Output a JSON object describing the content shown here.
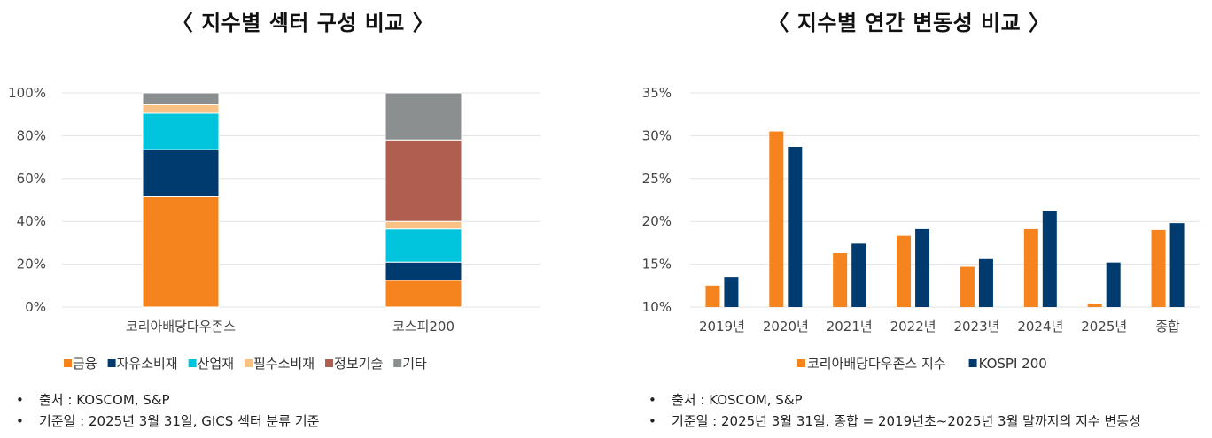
{
  "chart_data": [
    {
      "type": "bar",
      "stacked": true,
      "title": "〈 지수별 섹터 구성 비교 〉",
      "categories": [
        "코리아배당다우존스",
        "코스피200"
      ],
      "yticks": [
        "0%",
        "20%",
        "40%",
        "60%",
        "80%",
        "100%"
      ],
      "ylim": [
        0,
        100
      ],
      "legend_position": "bottom",
      "series": [
        {
          "name": "금융",
          "color": "#F5841F",
          "values": [
            51.5,
            12.5
          ]
        },
        {
          "name": "자유소비재",
          "color": "#003B6F",
          "values": [
            22.0,
            8.5
          ]
        },
        {
          "name": "산업재",
          "color": "#00C5DC",
          "values": [
            17.0,
            15.5
          ]
        },
        {
          "name": "필수소비재",
          "color": "#FAC185",
          "values": [
            4.0,
            3.5
          ]
        },
        {
          "name": "정보기술",
          "color": "#B05E4F",
          "values": [
            0.0,
            38.0
          ]
        },
        {
          "name": "기타",
          "color": "#8C8F8F",
          "values": [
            5.5,
            22.0
          ]
        }
      ],
      "notes": [
        "출처 : KOSCOM, S&P",
        "기준일 : 2025년 3월 31일, GICS 섹터 분류 기준"
      ]
    },
    {
      "type": "bar",
      "title": "〈 지수별 연간 변동성 비교 〉",
      "categories": [
        "2019년",
        "2020년",
        "2021년",
        "2022년",
        "2023년",
        "2024년",
        "2025년",
        "종합"
      ],
      "yticks": [
        "10%",
        "15%",
        "20%",
        "25%",
        "30%",
        "35%"
      ],
      "ylim": [
        10,
        35
      ],
      "legend_position": "bottom",
      "series": [
        {
          "name": "코리아배당다우존스 지수",
          "color": "#F5841F",
          "values": [
            12.5,
            30.5,
            16.3,
            18.3,
            14.7,
            19.1,
            10.4,
            19.0
          ]
        },
        {
          "name": "KOSPI 200",
          "color": "#003B6F",
          "values": [
            13.5,
            28.7,
            17.4,
            19.1,
            15.6,
            21.2,
            15.2,
            19.8
          ]
        }
      ],
      "notes": [
        "출처 : KOSCOM, S&P",
        "기준일 : 2025년 3월 31일, 종합 = 2019년초~2025년 3월 말까지의 지수 변동성"
      ]
    }
  ]
}
